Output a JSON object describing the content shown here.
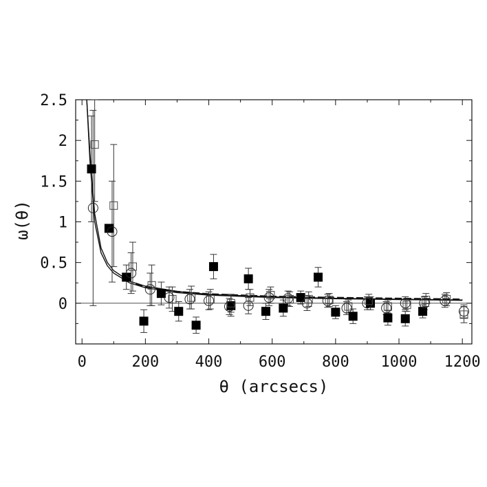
{
  "chart_data": {
    "type": "scatter",
    "xlabel": "θ (arcsecs)",
    "ylabel": "ω(θ)",
    "xlim": [
      -20,
      1230
    ],
    "ylim": [
      -0.5,
      2.5
    ],
    "xticks": [
      "0",
      "200",
      "400",
      "600",
      "800",
      "1000",
      "1200"
    ],
    "yticks": [
      "2.5",
      "2",
      "1.5",
      "1",
      "0.5",
      "0"
    ],
    "xtick_values": [
      0,
      200,
      400,
      600,
      800,
      1000,
      1200
    ],
    "ytick_values": [
      2.5,
      2,
      1.5,
      1,
      0.5,
      0
    ],
    "grid": false,
    "zero_line": true,
    "series": [
      {
        "marker": "filled-square",
        "points": [
          {
            "x": 30,
            "y": 1.65,
            "err": 0.65
          },
          {
            "x": 85,
            "y": 0.92,
            "err": 0.0
          },
          {
            "x": 140,
            "y": 0.32,
            "err": 0.15
          },
          {
            "x": 195,
            "y": -0.22,
            "err": 0.14
          },
          {
            "x": 250,
            "y": 0.12,
            "err": 0.14
          },
          {
            "x": 305,
            "y": -0.1,
            "err": 0.12
          },
          {
            "x": 360,
            "y": -0.27,
            "err": 0.1
          },
          {
            "x": 415,
            "y": 0.45,
            "err": 0.15
          },
          {
            "x": 470,
            "y": -0.03,
            "err": 0.13
          },
          {
            "x": 525,
            "y": 0.3,
            "err": 0.13
          },
          {
            "x": 580,
            "y": -0.1,
            "err": 0.1
          },
          {
            "x": 635,
            "y": -0.06,
            "err": 0.1
          },
          {
            "x": 690,
            "y": 0.07,
            "err": 0.08
          },
          {
            "x": 745,
            "y": 0.32,
            "err": 0.12
          },
          {
            "x": 800,
            "y": -0.11,
            "err": 0.08
          },
          {
            "x": 855,
            "y": -0.16,
            "err": 0.09
          },
          {
            "x": 910,
            "y": 0.0,
            "err": 0.08
          },
          {
            "x": 965,
            "y": -0.18,
            "err": 0.09
          },
          {
            "x": 1020,
            "y": -0.19,
            "err": 0.09
          },
          {
            "x": 1075,
            "y": -0.1,
            "err": 0.08
          }
        ]
      },
      {
        "marker": "open-circle",
        "points": [
          {
            "x": 35,
            "y": 1.17,
            "err": 1.2
          },
          {
            "x": 95,
            "y": 0.88,
            "err": 0.62
          },
          {
            "x": 155,
            "y": 0.37,
            "err": 0.25
          },
          {
            "x": 215,
            "y": 0.17,
            "err": 0.2
          },
          {
            "x": 275,
            "y": 0.07,
            "err": 0.13
          },
          {
            "x": 340,
            "y": 0.05,
            "err": 0.12
          },
          {
            "x": 400,
            "y": 0.03,
            "err": 0.11
          },
          {
            "x": 465,
            "y": -0.04,
            "err": 0.1
          },
          {
            "x": 525,
            "y": -0.03,
            "err": 0.1
          },
          {
            "x": 590,
            "y": 0.07,
            "err": 0.1
          },
          {
            "x": 650,
            "y": 0.06,
            "err": 0.09
          },
          {
            "x": 710,
            "y": 0.0,
            "err": 0.09
          },
          {
            "x": 775,
            "y": 0.03,
            "err": 0.08
          },
          {
            "x": 835,
            "y": -0.06,
            "err": 0.08
          },
          {
            "x": 900,
            "y": 0.0,
            "err": 0.08
          },
          {
            "x": 960,
            "y": -0.06,
            "err": 0.08
          },
          {
            "x": 1020,
            "y": 0.0,
            "err": 0.08
          },
          {
            "x": 1080,
            "y": 0.0,
            "err": 0.08
          },
          {
            "x": 1145,
            "y": 0.03,
            "err": 0.08
          },
          {
            "x": 1205,
            "y": -0.1,
            "err": 0.08
          }
        ]
      },
      {
        "marker": "open-square",
        "points": [
          {
            "x": 40,
            "y": 1.95,
            "err": 0.7
          },
          {
            "x": 100,
            "y": 1.2,
            "err": 0.75
          },
          {
            "x": 160,
            "y": 0.45,
            "err": 0.3
          },
          {
            "x": 220,
            "y": 0.22,
            "err": 0.25
          },
          {
            "x": 285,
            "y": 0.05,
            "err": 0.15
          },
          {
            "x": 345,
            "y": 0.07,
            "err": 0.14
          },
          {
            "x": 405,
            "y": 0.05,
            "err": 0.12
          },
          {
            "x": 470,
            "y": 0.0,
            "err": 0.11
          },
          {
            "x": 530,
            "y": 0.07,
            "err": 0.1
          },
          {
            "x": 595,
            "y": 0.1,
            "err": 0.1
          },
          {
            "x": 655,
            "y": 0.05,
            "err": 0.09
          },
          {
            "x": 715,
            "y": 0.05,
            "err": 0.09
          },
          {
            "x": 780,
            "y": 0.04,
            "err": 0.08
          },
          {
            "x": 840,
            "y": -0.04,
            "err": 0.08
          },
          {
            "x": 905,
            "y": 0.03,
            "err": 0.08
          },
          {
            "x": 965,
            "y": -0.04,
            "err": 0.08
          },
          {
            "x": 1025,
            "y": -0.02,
            "err": 0.08
          },
          {
            "x": 1085,
            "y": 0.04,
            "err": 0.08
          },
          {
            "x": 1150,
            "y": 0.05,
            "err": 0.08
          },
          {
            "x": 1205,
            "y": -0.14,
            "err": 0.1
          }
        ]
      },
      {
        "type": "line",
        "style": "thin-solid",
        "points": [
          {
            "x": 15,
            "y": 2.5
          },
          {
            "x": 25,
            "y": 1.75
          },
          {
            "x": 40,
            "y": 1.0
          },
          {
            "x": 60,
            "y": 0.62
          },
          {
            "x": 80,
            "y": 0.46
          },
          {
            "x": 100,
            "y": 0.37
          },
          {
            "x": 150,
            "y": 0.25
          },
          {
            "x": 200,
            "y": 0.19
          },
          {
            "x": 300,
            "y": 0.13
          },
          {
            "x": 400,
            "y": 0.1
          },
          {
            "x": 600,
            "y": 0.07
          },
          {
            "x": 800,
            "y": 0.055
          },
          {
            "x": 1000,
            "y": 0.045
          },
          {
            "x": 1200,
            "y": 0.035
          }
        ]
      },
      {
        "type": "line",
        "style": "thin-solid",
        "points": [
          {
            "x": 15,
            "y": 2.5
          },
          {
            "x": 25,
            "y": 1.85
          },
          {
            "x": 40,
            "y": 1.1
          },
          {
            "x": 60,
            "y": 0.68
          },
          {
            "x": 80,
            "y": 0.5
          },
          {
            "x": 100,
            "y": 0.4
          },
          {
            "x": 150,
            "y": 0.27
          },
          {
            "x": 200,
            "y": 0.21
          },
          {
            "x": 300,
            "y": 0.145
          },
          {
            "x": 400,
            "y": 0.11
          },
          {
            "x": 600,
            "y": 0.078
          },
          {
            "x": 800,
            "y": 0.06
          },
          {
            "x": 1000,
            "y": 0.05
          },
          {
            "x": 1200,
            "y": 0.04
          }
        ]
      },
      {
        "type": "line",
        "style": "thick-dashed",
        "points": [
          {
            "x": 170,
            "y": 0.24
          },
          {
            "x": 200,
            "y": 0.2
          },
          {
            "x": 300,
            "y": 0.14
          },
          {
            "x": 400,
            "y": 0.11
          },
          {
            "x": 600,
            "y": 0.08
          },
          {
            "x": 800,
            "y": 0.065
          },
          {
            "x": 1000,
            "y": 0.055
          },
          {
            "x": 1200,
            "y": 0.045
          }
        ]
      }
    ]
  }
}
